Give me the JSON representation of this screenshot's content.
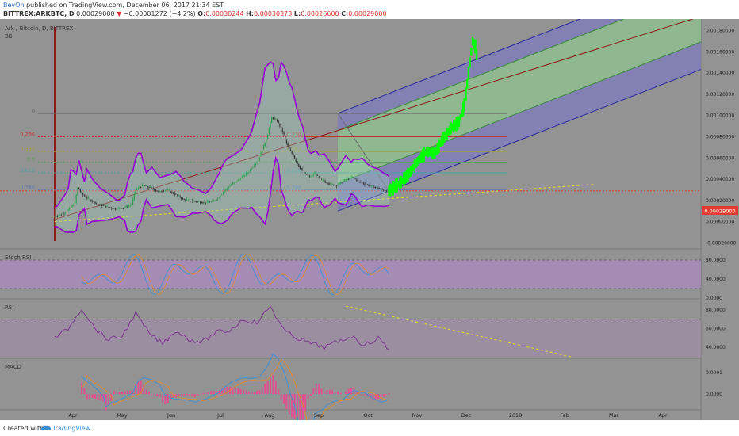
{
  "header": {
    "author": "BevOh",
    "published": "published on TradingView.com, December 06, 2017 21:34 EST",
    "symbol": "BITTREX:ARKBTC, D",
    "last": "0.00029000",
    "arrow": "▼",
    "change": "−0.00001272 (−4.2%)",
    "o_label": "O:",
    "o_val": "0.00030244",
    "h_label": "H:",
    "h_val": "0.00030373",
    "l_label": "L:",
    "l_val": "0.00026600",
    "c_label": "C:",
    "c_val": "0.00029000"
  },
  "pane_labels": {
    "instrument": "Ark / Bitcoin, D, BITTREX",
    "bb": "BB",
    "stoch": "Stoch RSI",
    "rsi": "RSI",
    "macd": "MACD"
  },
  "fib_labels": [
    "0",
    "0.236",
    "0.382",
    "0.5",
    "0.618",
    "0.786"
  ],
  "price_badge": "0.00029000",
  "footer": {
    "created": "Created with",
    "brand": "TradingView"
  },
  "colors": {
    "background": "#939393",
    "bb_band": "#9400d3",
    "candle_up": "#2ca24a",
    "candle_down": "#333333",
    "projection": "#00ff00",
    "channel_outer": "#7d7bbf",
    "channel_mid": "#8fc48f",
    "stoch_fill": "#b087c9",
    "rsi_line": "#7a2d8f",
    "macd_line": "#3a8fd6",
    "signal_line": "#e08a2d",
    "hist": "#e05090"
  },
  "chart_data": [
    {
      "type": "line",
      "title": "Ark / Bitcoin, D, BITTREX",
      "x": [
        "Apr",
        "May",
        "Jun",
        "Jul",
        "Aug",
        "Sep",
        "Oct",
        "Nov",
        "Dec",
        "2018",
        "Feb",
        "Mar",
        "Apr"
      ],
      "y_ticks": [
        0.0018,
        0.0016,
        0.0014,
        0.0012,
        0.001,
        0.0008,
        0.0006,
        0.0004,
        0.0002,
        0.0,
        -0.0002
      ],
      "y_tick_labels": [
        "0.00180000",
        "0.00160000",
        "0.00140000",
        "0.00120000",
        "0.00100000",
        "0.00080000",
        "0.00060000",
        "0.00040000",
        "0.00020000",
        "0.00000000",
        "-0.00020000"
      ],
      "ylim": [
        -0.00022,
        0.00185
      ],
      "series": [
        {
          "x": [
            0,
            4,
            8,
            12,
            16,
            18,
            22,
            28,
            34,
            40,
            46,
            52,
            58,
            61,
            66,
            72,
            78,
            84,
            90,
            93,
            96,
            100,
            106,
            112,
            118,
            122,
            126,
            132,
            138,
            144,
            148,
            152,
            158,
            162,
            166,
            170,
            174,
            178,
            182,
            186,
            188,
            190,
            194,
            198,
            204,
            210,
            216,
            222,
            226,
            230,
            236,
            240,
            244,
            248
          ],
          "y": [
            4e-05,
            6e-05,
            8e-05,
            0.00012,
            0.00018,
            0.00032,
            0.00025,
            0.0002,
            0.00016,
            0.00014,
            0.00012,
            0.00013,
            0.00016,
            0.0003,
            0.00034,
            0.00032,
            0.00028,
            0.0003,
            0.00026,
            0.00024,
            0.00021,
            0.0002,
            0.00019,
            0.00018,
            0.00019,
            0.00022,
            0.00028,
            0.00035,
            0.0004,
            0.00046,
            0.00052,
            0.00058,
            0.00078,
            0.00098,
            0.00095,
            0.00085,
            0.0007,
            0.00062,
            0.00052,
            0.00046,
            0.00044,
            0.00042,
            0.00045,
            0.0004,
            0.00036,
            0.00034,
            0.00039,
            0.00042,
            0.00038,
            0.00036,
            0.00033,
            0.00032,
            0.0003,
            0.00029
          ]
        }
      ],
      "projection": {
        "x": [
          248,
          256,
          262,
          270,
          276,
          282,
          288,
          294,
          300,
          304,
          306,
          308,
          310,
          312,
          314
        ],
        "y": [
          0.00029,
          0.00036,
          0.00044,
          0.00058,
          0.00066,
          0.00064,
          0.00078,
          0.00088,
          0.00094,
          0.0011,
          0.0013,
          0.0015,
          0.0017,
          0.00165,
          0.0015
        ]
      }
    },
    {
      "type": "line",
      "title": "Stoch RSI",
      "y_ticks": [
        80,
        40,
        0
      ],
      "y_tick_labels": [
        "80.0000",
        "40.0000",
        "0.0000"
      ],
      "ylim": [
        0,
        100
      ]
    },
    {
      "type": "line",
      "title": "RSI",
      "y_ticks": [
        80,
        60,
        40
      ],
      "y_tick_labels": [
        "80.0000",
        "60.0000",
        "40.0000"
      ],
      "ylim": [
        30,
        90
      ],
      "series": [
        {
          "x": [
            0,
            10,
            20,
            30,
            40,
            50,
            60,
            70,
            80,
            90,
            100,
            110,
            120,
            130,
            140,
            150,
            160,
            170,
            180,
            190,
            200,
            210,
            220,
            230,
            240,
            248
          ],
          "y": [
            50,
            60,
            82,
            60,
            48,
            52,
            76,
            55,
            44,
            58,
            48,
            46,
            56,
            58,
            70,
            66,
            84,
            58,
            50,
            44,
            40,
            46,
            52,
            42,
            50,
            38
          ]
        }
      ]
    },
    {
      "type": "line",
      "title": "MACD",
      "y_ticks": [
        0.0001,
        0.0
      ],
      "y_tick_labels": [
        "0.0001",
        "0.0000"
      ],
      "ylim": [
        -7e-05,
        0.00016
      ]
    }
  ]
}
